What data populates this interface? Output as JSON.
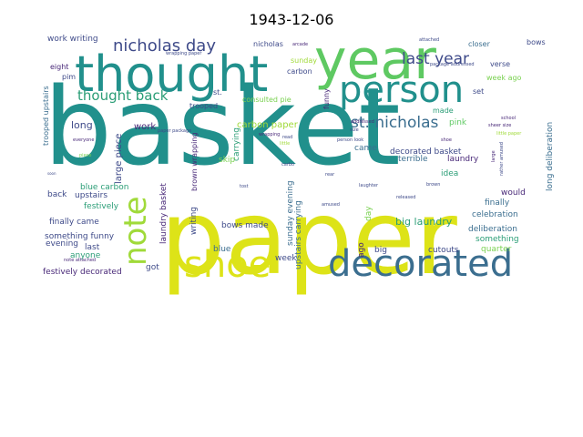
{
  "title": "1943-12-06",
  "palette": {
    "teal": "#21908c",
    "steel": "#3b6e8f",
    "navy": "#3e4a89",
    "green": "#5ec962",
    "lime": "#a0da39",
    "yellow": "#dde318",
    "purple": "#482878",
    "darkpurple": "#440154",
    "seagreen": "#2a9d76",
    "mint": "#7ad151"
  },
  "words": [
    {
      "text": "basket",
      "color": "teal"
    },
    {
      "text": "paper",
      "color": "yellow"
    },
    {
      "text": "thought",
      "color": "teal"
    },
    {
      "text": "year",
      "color": "green"
    },
    {
      "text": "person",
      "color": "teal"
    },
    {
      "text": "decorated",
      "color": "steel"
    },
    {
      "text": "shoe",
      "color": "yellow"
    },
    {
      "text": "note",
      "color": "lime"
    },
    {
      "text": "nicholas day",
      "color": "navy"
    },
    {
      "text": "last year",
      "color": "navy"
    },
    {
      "text": "st. nicholas",
      "color": "steel"
    },
    {
      "text": "thought back",
      "color": "seagreen"
    },
    {
      "text": "work writing",
      "color": "navy"
    },
    {
      "text": "nicholas",
      "color": "navy"
    },
    {
      "text": "closer",
      "color": "steel"
    },
    {
      "text": "bows",
      "color": "navy"
    },
    {
      "text": "verse",
      "color": "navy"
    },
    {
      "text": "week ago",
      "color": "mint"
    },
    {
      "text": "set",
      "color": "navy"
    },
    {
      "text": "made",
      "color": "seagreen"
    },
    {
      "text": "pink",
      "color": "green"
    },
    {
      "text": "long deliberation",
      "color": "steel"
    },
    {
      "text": "sunday",
      "color": "lime"
    },
    {
      "text": "carbon",
      "color": "navy"
    },
    {
      "text": "funny",
      "color": "purple"
    },
    {
      "text": "st.",
      "color": "navy"
    },
    {
      "text": "consulted pie",
      "color": "mint"
    },
    {
      "text": "trooped",
      "color": "navy"
    },
    {
      "text": "carbon paper",
      "color": "lime"
    },
    {
      "text": "carrying",
      "color": "seagreen"
    },
    {
      "text": "skip",
      "color": "mint"
    },
    {
      "text": "brown wrapping",
      "color": "purple"
    },
    {
      "text": "work",
      "color": "purple"
    },
    {
      "text": "long",
      "color": "navy"
    },
    {
      "text": "large piece",
      "color": "navy"
    },
    {
      "text": "eight",
      "color": "purple"
    },
    {
      "text": "pim",
      "color": "navy"
    },
    {
      "text": "trooped upstairs",
      "color": "steel"
    },
    {
      "text": "decorated basket",
      "color": "navy"
    },
    {
      "text": "terrible",
      "color": "steel"
    },
    {
      "text": "laundry",
      "color": "purple"
    },
    {
      "text": "came",
      "color": "steel"
    },
    {
      "text": "idea",
      "color": "seagreen"
    },
    {
      "text": "finally",
      "color": "steel"
    },
    {
      "text": "would",
      "color": "purple"
    },
    {
      "text": "celebration",
      "color": "steel"
    },
    {
      "text": "deliberation",
      "color": "steel"
    },
    {
      "text": "something",
      "color": "seagreen"
    },
    {
      "text": "quarter",
      "color": "mint"
    },
    {
      "text": "cutouts",
      "color": "navy"
    },
    {
      "text": "big laundry",
      "color": "seagreen"
    },
    {
      "text": "big",
      "color": "navy"
    },
    {
      "text": "ago",
      "color": "purple"
    },
    {
      "text": "day",
      "color": "mint"
    },
    {
      "text": "upstairs carrying",
      "color": "steel"
    },
    {
      "text": "sunday evening",
      "color": "steel"
    },
    {
      "text": "week",
      "color": "navy"
    },
    {
      "text": "blue",
      "color": "steel"
    },
    {
      "text": "bows made",
      "color": "navy"
    },
    {
      "text": "writing",
      "color": "navy"
    },
    {
      "text": "laundry basket",
      "color": "purple"
    },
    {
      "text": "got",
      "color": "navy"
    },
    {
      "text": "last",
      "color": "navy"
    },
    {
      "text": "anyone",
      "color": "seagreen"
    },
    {
      "text": "festively",
      "color": "seagreen"
    },
    {
      "text": "upstairs",
      "color": "navy"
    },
    {
      "text": "back",
      "color": "navy"
    },
    {
      "text": "blue carbon",
      "color": "seagreen"
    },
    {
      "text": "finally came",
      "color": "navy"
    },
    {
      "text": "something funny",
      "color": "navy"
    },
    {
      "text": "evening",
      "color": "navy"
    },
    {
      "text": "festively decorated",
      "color": "purple"
    },
    {
      "text": "note attached",
      "color": "purple"
    },
    {
      "text": "soon",
      "color": "navy"
    },
    {
      "text": "everyone",
      "color": "purple"
    },
    {
      "text": "piece",
      "color": "mint"
    },
    {
      "text": "paper package",
      "color": "navy"
    },
    {
      "text": "wrapping",
      "color": "purple"
    },
    {
      "text": "read",
      "color": "navy"
    },
    {
      "text": "little",
      "color": "lime"
    },
    {
      "text": "size",
      "color": "navy"
    },
    {
      "text": "addressed",
      "color": "purple"
    },
    {
      "text": "person look",
      "color": "navy"
    },
    {
      "text": "carbo",
      "color": "navy"
    },
    {
      "text": "rear",
      "color": "navy"
    },
    {
      "text": "laughter",
      "color": "navy"
    },
    {
      "text": "brown",
      "color": "navy"
    },
    {
      "text": "amused",
      "color": "navy"
    },
    {
      "text": "released",
      "color": "navy"
    },
    {
      "text": "rather amused",
      "color": "navy"
    },
    {
      "text": "large",
      "color": "purple"
    },
    {
      "text": "sheer size",
      "color": "purple"
    },
    {
      "text": "little paper",
      "color": "lime"
    },
    {
      "text": "school",
      "color": "purple"
    },
    {
      "text": "shoe",
      "color": "purple"
    },
    {
      "text": "package addressed",
      "color": "navy"
    },
    {
      "text": "attached",
      "color": "navy"
    },
    {
      "text": "wrapping paper",
      "color": "navy"
    },
    {
      "text": "arcade",
      "color": "purple"
    },
    {
      "text": "tost",
      "color": "navy"
    }
  ]
}
